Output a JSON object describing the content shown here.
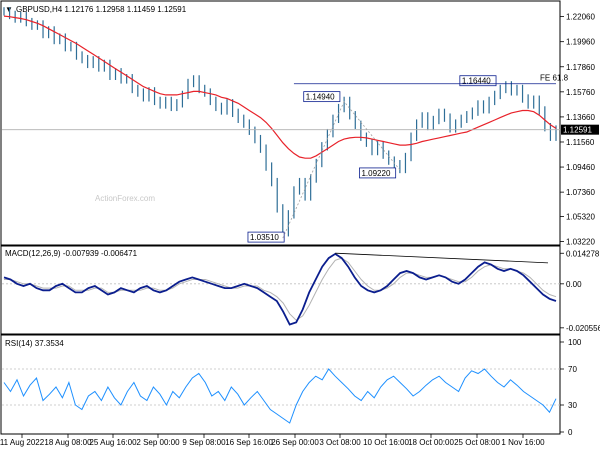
{
  "header": {
    "triangle": "▼",
    "symbol_info": "GBPUSD,H4  1.12176 1.12958 1.11459 1.12591"
  },
  "watermark": "ActionForex.com",
  "colors": {
    "price": "#2E6E97",
    "ma": "#E8222A",
    "macd": "#0B1E8E",
    "signal": "#B3B3B3",
    "rsi": "#1E90FF",
    "annotation_border": "#0B1E8E",
    "dotted": "#A0A0A0",
    "axis": "#000000",
    "price_tag_bg": "#000000"
  },
  "chart_data": [
    {
      "type": "line",
      "panel": "price",
      "title": "GBPUSD,H4",
      "ylim": [
        1.031,
        1.232
      ],
      "y_ticks": [
        "1.22060",
        "1.19960",
        "1.17860",
        "1.15760",
        "1.13660",
        "1.11560",
        "1.09460",
        "1.07360",
        "1.05320",
        "1.03220"
      ],
      "y_tick_values": [
        1.2206,
        1.1996,
        1.1786,
        1.1576,
        1.1366,
        1.1156,
        1.0946,
        1.0736,
        1.0532,
        1.0322
      ],
      "current_price": {
        "label": "1.12591",
        "value": 1.12591
      },
      "series": [
        {
          "values": [
            1.225,
            1.222,
            1.219,
            1.221,
            1.216,
            1.213,
            1.214,
            1.206,
            1.209,
            1.201,
            1.203,
            1.195,
            1.196,
            1.188,
            1.185,
            1.181,
            1.184,
            1.178,
            1.181,
            1.171,
            1.174,
            1.168,
            1.169,
            1.16,
            1.157,
            1.153,
            1.158,
            1.15,
            1.147,
            1.15,
            1.145,
            1.148,
            1.155,
            1.165,
            1.168,
            1.16,
            1.157,
            1.15,
            1.145,
            1.142,
            1.148,
            1.14,
            1.135,
            1.131,
            1.125,
            1.118,
            1.11,
            1.095,
            1.082,
            1.06,
            1.04,
            1.055,
            1.075,
            1.082,
            1.07,
            1.085,
            1.098,
            1.112,
            1.123,
            1.135,
            1.144,
            1.15,
            1.138,
            1.13,
            1.12,
            1.115,
            1.108,
            1.113,
            1.105,
            1.1,
            1.097,
            1.093,
            1.103,
            1.12,
            1.131,
            1.137,
            1.129,
            1.134,
            1.14,
            1.136,
            1.127,
            1.131,
            1.135,
            1.138,
            1.141,
            1.147,
            1.143,
            1.15,
            1.155,
            1.16,
            1.163,
            1.158,
            1.16,
            1.152,
            1.147,
            1.151,
            1.142,
            1.128,
            1.12,
            1.126
          ]
        },
        {
          "name": "",
          "values": [
            1.221,
            1.2205,
            1.2198,
            1.219,
            1.218,
            1.2165,
            1.215,
            1.213,
            1.2105,
            1.208,
            1.2055,
            1.203,
            1.2005,
            1.198,
            1.195,
            1.192,
            1.189,
            1.186,
            1.183,
            1.18,
            1.177,
            1.174,
            1.171,
            1.168,
            1.165,
            1.162,
            1.16,
            1.158,
            1.156,
            1.155,
            1.155,
            1.155,
            1.156,
            1.157,
            1.158,
            1.158,
            1.157,
            1.156,
            1.155,
            1.153,
            1.152,
            1.15,
            1.148,
            1.145,
            1.142,
            1.139,
            1.136,
            1.132,
            1.127,
            1.121,
            1.115,
            1.11,
            1.106,
            1.103,
            1.102,
            1.102,
            1.104,
            1.107,
            1.11,
            1.113,
            1.116,
            1.118,
            1.119,
            1.1195,
            1.1195,
            1.119,
            1.118,
            1.117,
            1.116,
            1.115,
            1.114,
            1.113,
            1.113,
            1.1135,
            1.1145,
            1.116,
            1.117,
            1.118,
            1.119,
            1.12,
            1.121,
            1.122,
            1.123,
            1.124,
            1.126,
            1.128,
            1.13,
            1.132,
            1.134,
            1.136,
            1.138,
            1.14,
            1.141,
            1.142,
            1.142,
            1.141,
            1.138,
            1.134,
            1.13,
            1.127
          ]
        }
      ],
      "annotations": [
        {
          "label": "1.03510",
          "value": 1.0351
        },
        {
          "label": "1.14940",
          "value": 1.1494
        },
        {
          "label": "1.09220",
          "value": 1.0922
        },
        {
          "label": "1.16440",
          "value": 1.1644
        },
        {
          "label": "FE 61.8",
          "value": 1.1644
        }
      ]
    },
    {
      "type": "line",
      "panel": "macd",
      "title": "MACD(12,26,9) -0.007939 -0.006471",
      "ylim": [
        -0.0225,
        0.0158
      ],
      "y_ticks": [
        "0.014278",
        "0.00",
        "-0.020556"
      ],
      "y_tick_values": [
        0.014278,
        0.0,
        -0.020556
      ],
      "series": [
        {
          "values": [
            0.003,
            0.002,
            0.0,
            -0.001,
            0.0,
            -0.002,
            -0.003,
            -0.003,
            -0.001,
            0.0,
            -0.002,
            -0.004,
            -0.004,
            -0.002,
            -0.001,
            -0.003,
            -0.005,
            -0.004,
            -0.002,
            -0.003,
            -0.004,
            -0.002,
            -0.001,
            -0.003,
            -0.004,
            -0.003,
            -0.001,
            0.001,
            0.002,
            0.003,
            0.002,
            0.001,
            0.0,
            -0.001,
            -0.002,
            -0.002,
            -0.001,
            0.0,
            -0.001,
            -0.002,
            -0.004,
            -0.006,
            -0.008,
            -0.013,
            -0.019,
            -0.018,
            -0.012,
            -0.004,
            0.002,
            0.008,
            0.012,
            0.014,
            0.012,
            0.008,
            0.003,
            -0.001,
            -0.003,
            -0.004,
            -0.003,
            -0.001,
            0.002,
            0.005,
            0.006,
            0.005,
            0.003,
            0.002,
            0.003,
            0.004,
            0.003,
            0.001,
            0.0,
            0.002,
            0.005,
            0.008,
            0.01,
            0.009,
            0.007,
            0.006,
            0.007,
            0.006,
            0.004,
            0.001,
            -0.002,
            -0.005,
            -0.007,
            -0.008
          ]
        },
        {
          "values": [
            0.002,
            0.002,
            0.001,
            0.0,
            0.0,
            -0.001,
            -0.002,
            -0.002,
            -0.002,
            -0.001,
            -0.001,
            -0.003,
            -0.003,
            -0.003,
            -0.002,
            -0.002,
            -0.004,
            -0.004,
            -0.003,
            -0.003,
            -0.003,
            -0.003,
            -0.002,
            -0.002,
            -0.003,
            -0.003,
            -0.002,
            0.0,
            0.001,
            0.002,
            0.002,
            0.002,
            0.001,
            0.0,
            -0.001,
            -0.002,
            -0.002,
            -0.001,
            -0.001,
            -0.001,
            -0.003,
            -0.004,
            -0.006,
            -0.009,
            -0.014,
            -0.017,
            -0.015,
            -0.01,
            -0.004,
            0.002,
            0.007,
            0.011,
            0.012,
            0.01,
            0.006,
            0.002,
            -0.001,
            -0.003,
            -0.003,
            -0.002,
            0.0,
            0.003,
            0.005,
            0.005,
            0.004,
            0.003,
            0.003,
            0.004,
            0.003,
            0.002,
            0.001,
            0.001,
            0.003,
            0.006,
            0.008,
            0.009,
            0.008,
            0.007,
            0.007,
            0.006,
            0.005,
            0.003,
            0.0,
            -0.003,
            -0.005,
            -0.006
          ]
        }
      ]
    },
    {
      "type": "line",
      "panel": "rsi",
      "title": "RSI(14) 37.3534",
      "ylim": [
        0,
        100
      ],
      "y_ticks": [
        "100",
        "70",
        "30",
        "0"
      ],
      "y_tick_values": [
        100,
        70,
        30,
        0
      ],
      "series": [
        {
          "values": [
            55,
            45,
            58,
            40,
            52,
            60,
            35,
            42,
            50,
            38,
            55,
            30,
            25,
            40,
            45,
            35,
            50,
            38,
            30,
            45,
            55,
            40,
            35,
            50,
            42,
            30,
            45,
            38,
            50,
            60,
            65,
            55,
            40,
            45,
            35,
            50,
            42,
            30,
            38,
            45,
            35,
            25,
            20,
            15,
            10,
            30,
            45,
            55,
            62,
            58,
            70,
            62,
            55,
            48,
            40,
            35,
            45,
            38,
            50,
            58,
            62,
            55,
            48,
            40,
            45,
            52,
            58,
            62,
            55,
            50,
            45,
            60,
            68,
            65,
            70,
            62,
            55,
            50,
            58,
            52,
            45,
            40,
            35,
            30,
            22,
            37
          ]
        }
      ],
      "levels": [
        70,
        30
      ]
    }
  ],
  "x_axis": {
    "ticks": [
      "11 Aug 2022",
      "18 Aug 08:00",
      "25 Aug 16:00",
      "2 Sep 00:00",
      "9 Sep 08:00",
      "16 Sep 16:00",
      "26 Sep 00:00",
      "3 Oct 08:00",
      "10 Oct 16:00",
      "18 Oct 00:00",
      "25 Oct 08:00",
      "1 Nov 16:00"
    ]
  }
}
